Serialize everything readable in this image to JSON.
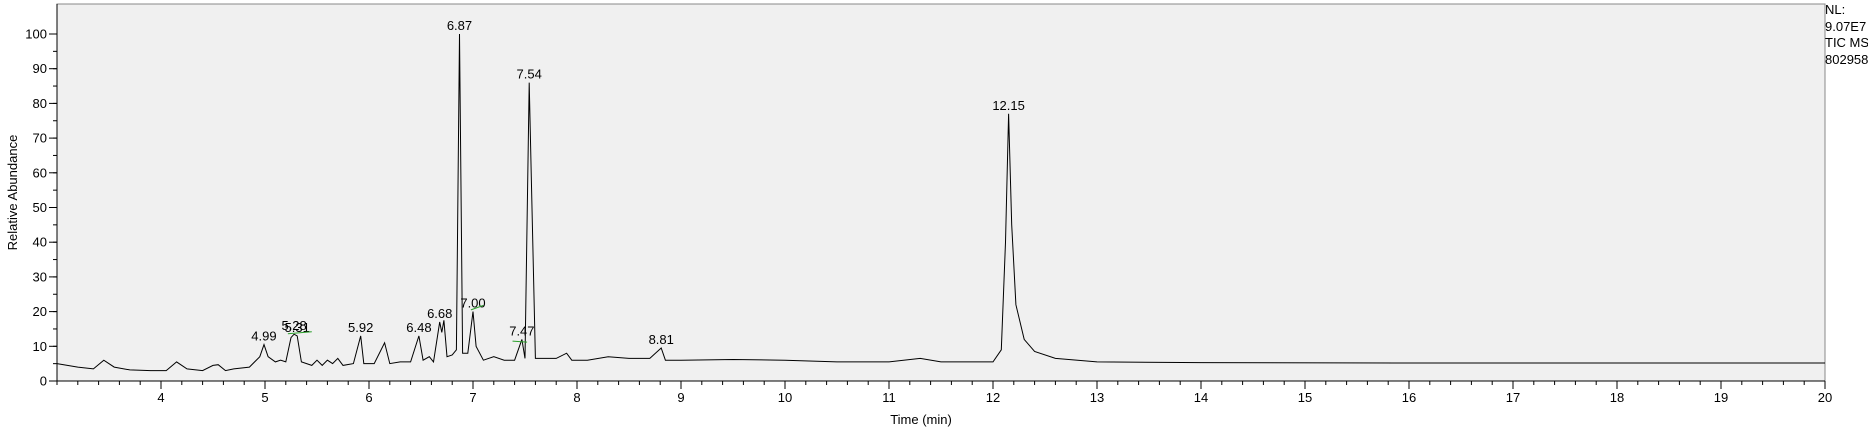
{
  "chart_data": {
    "type": "line",
    "xlabel": "Time (min)",
    "ylabel": "Relative Abundance",
    "xlim": [
      3.0,
      20.0
    ],
    "ylim": [
      0,
      100
    ],
    "xticks": [
      4,
      5,
      6,
      7,
      8,
      9,
      10,
      11,
      12,
      13,
      14,
      15,
      16,
      17,
      18,
      19,
      20
    ],
    "yticks": [
      0,
      10,
      20,
      30,
      40,
      50,
      60,
      70,
      80,
      90,
      100
    ],
    "grid": false,
    "plot_background": "#f0f0f0",
    "line_color": "#000000",
    "baseline_marker_color": "#2ca02c",
    "side_info": [
      "NL:",
      "9.07E7",
      "TIC  MS",
      "802958"
    ],
    "series": [
      {
        "x": [
          3.0,
          3.2,
          3.35,
          3.45,
          3.55,
          3.7,
          3.9,
          4.05,
          4.15,
          4.25,
          4.4,
          4.5,
          4.55,
          4.62,
          4.7,
          4.85,
          4.95,
          4.99,
          5.03,
          5.1,
          5.15,
          5.2,
          5.25,
          5.28,
          5.31,
          5.35,
          5.45,
          5.5,
          5.55,
          5.6,
          5.65,
          5.7,
          5.75,
          5.85,
          5.92,
          5.95,
          6.05,
          6.15,
          6.2,
          6.3,
          6.4,
          6.48,
          6.52,
          6.58,
          6.62,
          6.68,
          6.7,
          6.72,
          6.75,
          6.8,
          6.84,
          6.87,
          6.9,
          6.95,
          7.0,
          7.03,
          7.1,
          7.2,
          7.3,
          7.4,
          7.47,
          7.5,
          7.54,
          7.56,
          7.6,
          7.7,
          7.8,
          7.9,
          7.95,
          8.1,
          8.3,
          8.5,
          8.7,
          8.81,
          8.85,
          9.0,
          9.5,
          10.0,
          10.5,
          11.0,
          11.3,
          11.5,
          11.8,
          12.0,
          12.08,
          12.12,
          12.15,
          12.18,
          12.22,
          12.3,
          12.4,
          12.6,
          13.0,
          14.0,
          16.0,
          18.0,
          20.0
        ],
        "y": [
          5.0,
          4.0,
          3.5,
          6.0,
          4.0,
          3.2,
          3.0,
          3.0,
          5.5,
          3.5,
          3.0,
          4.5,
          4.7,
          3.0,
          3.5,
          4.0,
          7.0,
          10.5,
          7.0,
          5.5,
          6.0,
          5.5,
          12.5,
          13.5,
          13.0,
          5.5,
          4.5,
          6.0,
          4.5,
          6.0,
          5.0,
          6.5,
          4.5,
          5.0,
          13.0,
          5.0,
          5.0,
          11.0,
          5.0,
          5.5,
          5.5,
          13.0,
          6.0,
          7.0,
          5.5,
          17.0,
          14.0,
          17.5,
          7.0,
          7.5,
          9.0,
          100.0,
          8.0,
          8.0,
          20.0,
          10.0,
          6.0,
          7.0,
          6.0,
          6.0,
          12.0,
          6.5,
          86.0,
          60.0,
          6.5,
          6.5,
          6.5,
          8.0,
          6.0,
          6.0,
          7.0,
          6.5,
          6.5,
          9.5,
          6.0,
          6.0,
          6.2,
          6.0,
          5.5,
          5.5,
          6.5,
          5.5,
          5.5,
          5.5,
          9.0,
          40.0,
          77.0,
          45.0,
          22.0,
          12.0,
          8.5,
          6.5,
          5.5,
          5.3,
          5.2,
          5.2,
          5.2
        ]
      }
    ],
    "peak_labels": [
      {
        "x": 4.99,
        "y": 10.5,
        "label": "4.99"
      },
      {
        "x": 5.28,
        "y": 13.5,
        "label": "5.28"
      },
      {
        "x": 5.31,
        "y": 13.0,
        "label": "5.31"
      },
      {
        "x": 5.92,
        "y": 13.0,
        "label": "5.92"
      },
      {
        "x": 6.48,
        "y": 13.0,
        "label": "6.48"
      },
      {
        "x": 6.68,
        "y": 17.0,
        "label": "6.68"
      },
      {
        "x": 6.87,
        "y": 100.0,
        "label": "6.87"
      },
      {
        "x": 7.0,
        "y": 20.0,
        "label": "7.00"
      },
      {
        "x": 7.47,
        "y": 12.0,
        "label": "7.47"
      },
      {
        "x": 7.54,
        "y": 86.0,
        "label": "7.54"
      },
      {
        "x": 8.81,
        "y": 9.5,
        "label": "8.81"
      },
      {
        "x": 12.15,
        "y": 77.0,
        "label": "12.15"
      }
    ]
  }
}
